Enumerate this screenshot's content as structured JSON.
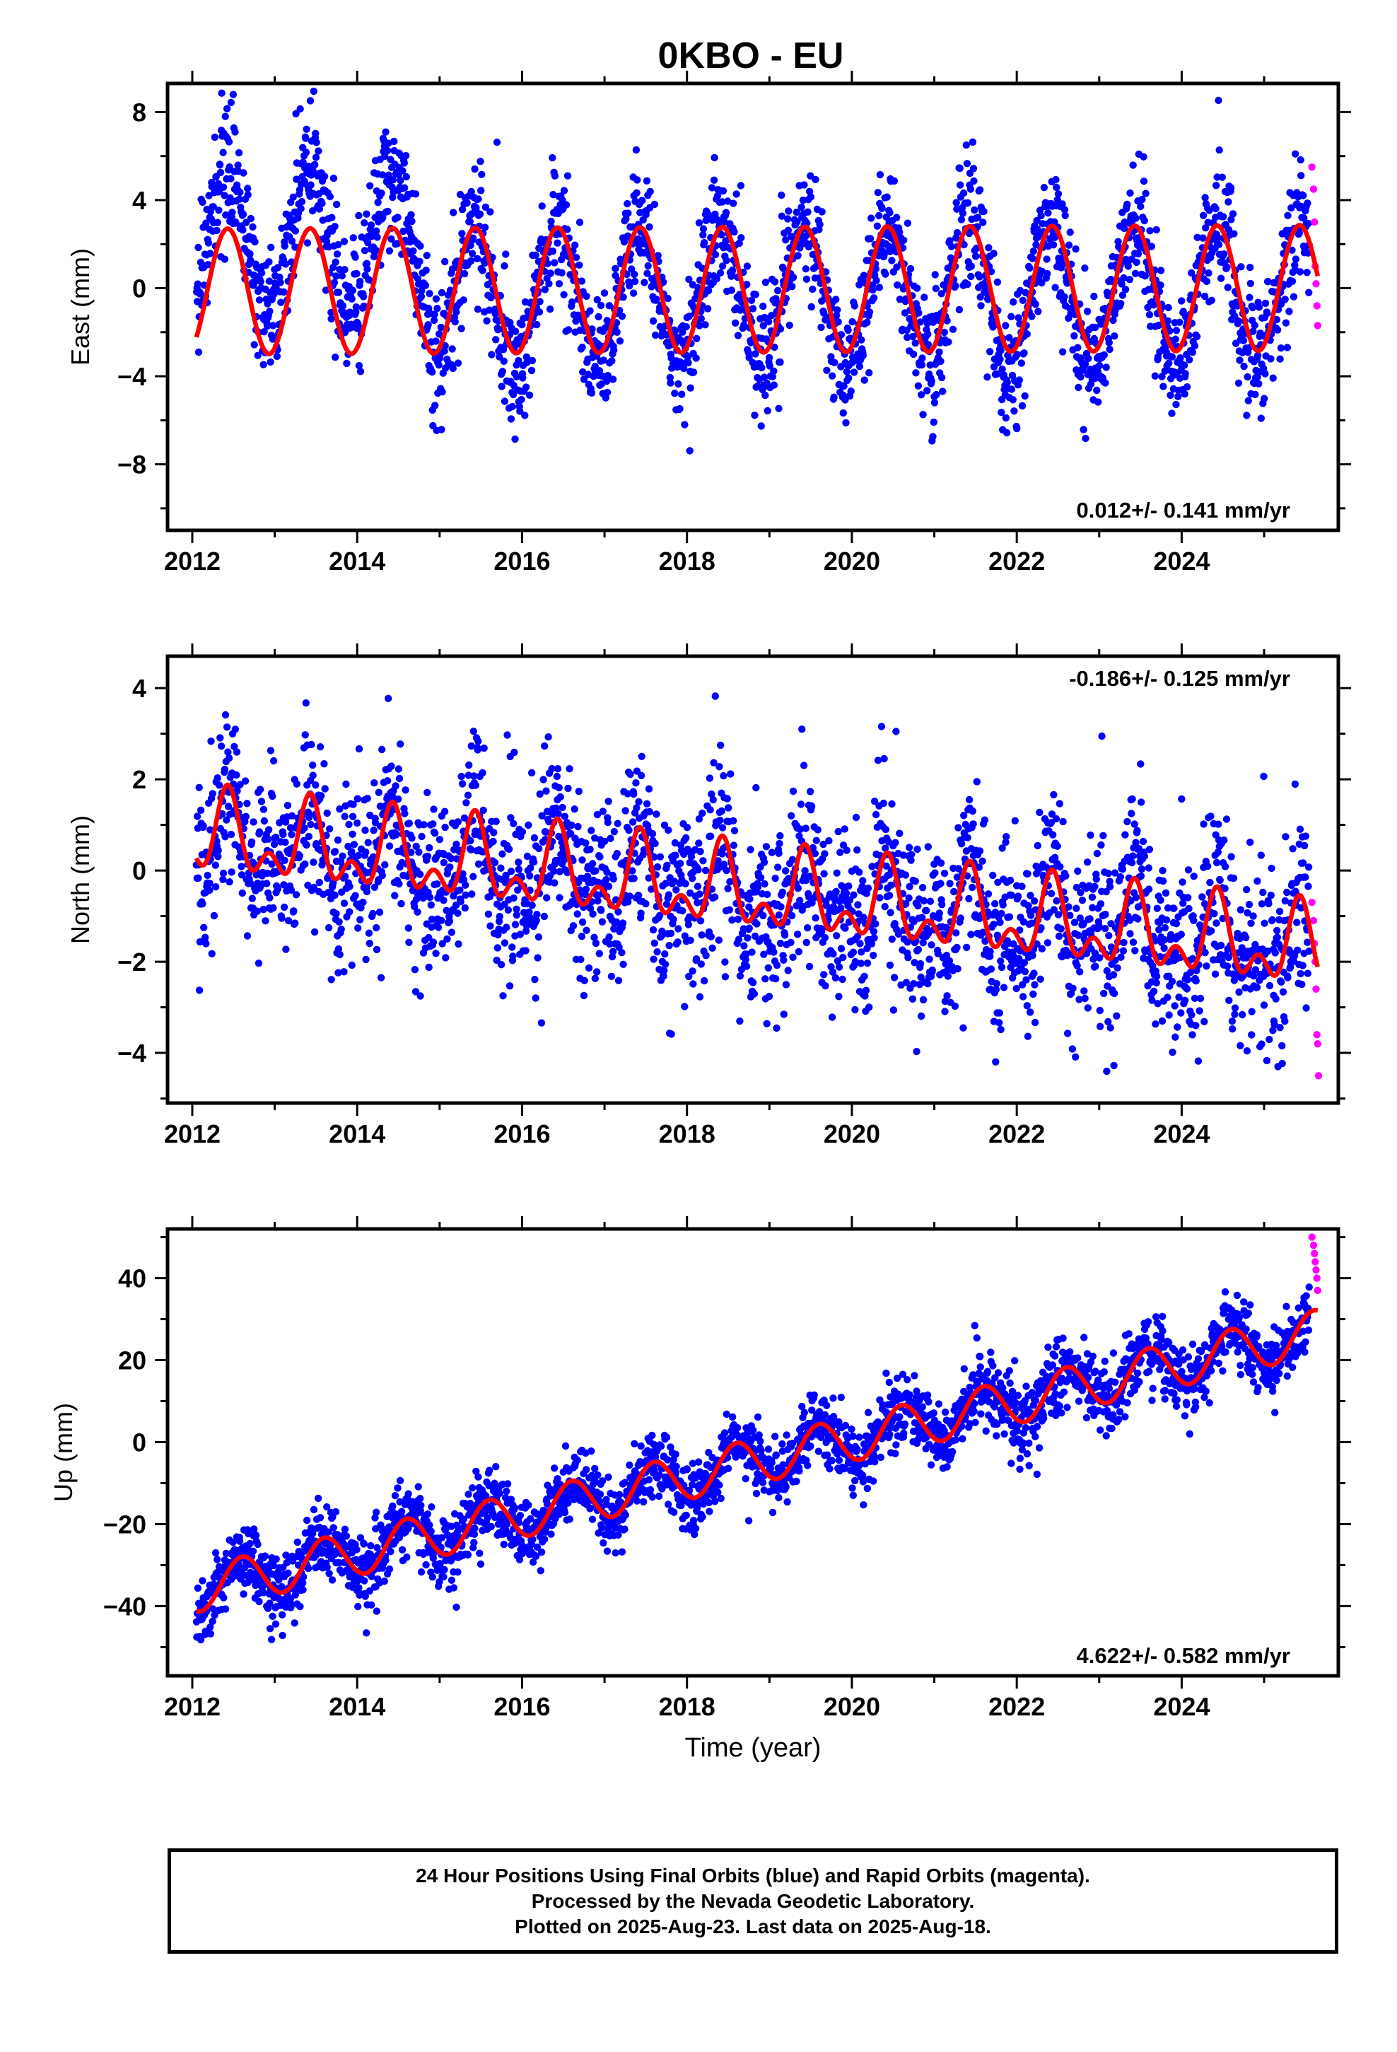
{
  "title": "0KBO - EU",
  "colors": {
    "final": "#0000ff",
    "rapid": "#ff00ff",
    "model": "#ff0000",
    "axis": "#000000"
  },
  "caption": {
    "line1": "24 Hour Positions Using Final Orbits (blue) and Rapid Orbits (magenta).",
    "line2": "Processed by the Nevada Geodetic Laboratory.",
    "line3": "Plotted on 2025-Aug-23. Last data on 2025-Aug-18."
  },
  "chart_data": [
    {
      "type": "scatter",
      "ylabel": "East (mm)",
      "xlabel": "",
      "xlim": [
        2011.7,
        2025.9
      ],
      "ylim": [
        -11,
        9.3
      ],
      "xticks": [
        2012,
        2014,
        2016,
        2018,
        2020,
        2022,
        2024
      ],
      "yticks": [
        -8,
        -4,
        0,
        4,
        8
      ],
      "rate_label": "0.012+/- 0.141 mm/yr",
      "rate_position": "bottom-right",
      "series": [
        {
          "name": "Final Orbits (blue)",
          "kind": "points",
          "x_range": [
            2012.05,
            2025.55
          ],
          "level": [
            [
              2012.05,
              2.0
            ],
            [
              2014.85,
              2.0
            ],
            [
              2014.9,
              -0.3
            ],
            [
              2025.55,
              -0.3
            ]
          ],
          "annual_amplitude": 3.2,
          "annual_phase_peak": 0.42,
          "scatter_sd": 1.4
        },
        {
          "name": "Rapid Orbits (magenta)",
          "kind": "points",
          "x": [
            2025.58,
            2025.6,
            2025.61,
            2025.62,
            2025.63,
            2025.64,
            2025.65
          ],
          "y": [
            5.5,
            4.5,
            3.0,
            1.0,
            0.2,
            -0.8,
            -1.7
          ]
        },
        {
          "name": "Model",
          "kind": "line",
          "x_range": [
            2012.05,
            2025.65
          ],
          "offset": -0.15,
          "trend": 0.012,
          "annual_amplitude": 2.85,
          "annual_phase_peak": 0.43
        }
      ]
    },
    {
      "type": "scatter",
      "ylabel": "North (mm)",
      "xlabel": "",
      "xlim": [
        2011.7,
        2025.9
      ],
      "ylim": [
        -5.1,
        4.7
      ],
      "xticks": [
        2012,
        2014,
        2016,
        2018,
        2020,
        2022,
        2024
      ],
      "yticks": [
        -4,
        -2,
        0,
        2,
        4
      ],
      "rate_label": "-0.186+/- 0.125 mm/yr",
      "rate_position": "top-right",
      "series": [
        {
          "name": "Final Orbits (blue)",
          "kind": "points",
          "x_range": [
            2012.05,
            2025.55
          ],
          "offset": 0.75,
          "trend": -0.186,
          "annual_amplitude": 0.7,
          "annual_phase_peak": 0.43,
          "semiannual_amplitude": 0.5,
          "scatter_sd": 0.95
        },
        {
          "name": "Rapid Orbits (magenta)",
          "kind": "points",
          "x": [
            2025.58,
            2025.6,
            2025.61,
            2025.62,
            2025.63,
            2025.64,
            2025.65,
            2025.66
          ],
          "y": [
            -0.7,
            -1.1,
            -1.6,
            -2.0,
            -2.6,
            -3.6,
            -3.8,
            -4.5
          ]
        },
        {
          "name": "Model",
          "kind": "line",
          "x_range": [
            2012.05,
            2025.65
          ],
          "offset": 0.75,
          "trend": -0.186,
          "annual_amplitude": 0.7,
          "annual_phase_peak": 0.43,
          "semiannual_amplitude": 0.5
        }
      ]
    },
    {
      "type": "scatter",
      "ylabel": "Up (mm)",
      "xlabel": "Time (year)",
      "xlim": [
        2011.7,
        2025.9
      ],
      "ylim": [
        -57,
        52
      ],
      "xticks": [
        2012,
        2014,
        2016,
        2018,
        2020,
        2022,
        2024
      ],
      "yticks": [
        -40,
        -20,
        0,
        20,
        40
      ],
      "rate_label": "4.622+/- 0.582 mm/yr",
      "rate_position": "bottom-right",
      "series": [
        {
          "name": "Final Orbits (blue)",
          "kind": "points",
          "x_range": [
            2012.05,
            2025.55
          ],
          "offset": -36,
          "trend": 4.622,
          "annual_amplitude": 5.5,
          "annual_phase_peak": 0.6,
          "scatter_sd": 4.2
        },
        {
          "name": "Rapid Orbits (magenta)",
          "kind": "points",
          "x": [
            2025.58,
            2025.6,
            2025.61,
            2025.62,
            2025.63,
            2025.64,
            2025.65
          ],
          "y": [
            50,
            48,
            46,
            44,
            42,
            40,
            37
          ]
        },
        {
          "name": "Model",
          "kind": "line",
          "x_range": [
            2012.05,
            2025.65
          ],
          "offset": -36,
          "trend": 4.622,
          "annual_amplitude": 5.5,
          "annual_phase_peak": 0.6
        }
      ]
    }
  ]
}
